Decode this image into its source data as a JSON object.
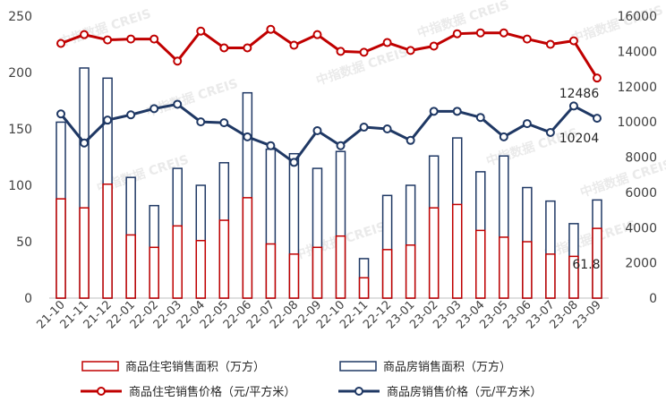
{
  "chart_data": {
    "type": "bar",
    "categories": [
      "21-10",
      "21-11",
      "21-12",
      "22-01",
      "22-02",
      "22-03",
      "22-04",
      "22-05",
      "22-06",
      "22-07",
      "22-08",
      "22-09",
      "22-10",
      "22-11",
      "22-12",
      "23-01",
      "23-02",
      "23-03",
      "23-04",
      "23-05",
      "23-06",
      "23-07",
      "23-08",
      "23-09"
    ],
    "left_axis": {
      "ylim": [
        0,
        250
      ],
      "ticks": [
        0,
        50,
        100,
        150,
        200,
        250
      ]
    },
    "right_axis": {
      "ylim": [
        0,
        16000
      ],
      "ticks": [
        0,
        2000,
        4000,
        6000,
        8000,
        10000,
        12000,
        14000,
        16000
      ]
    },
    "series": [
      {
        "name": "商品住宅销售面积（万方）",
        "kind": "bar",
        "axis": "left",
        "color": "#c00000",
        "fill": "#ffffff",
        "values": [
          88,
          80,
          101,
          56,
          45,
          64,
          51,
          69,
          89,
          48,
          39,
          45,
          55,
          18,
          43,
          47,
          80,
          83,
          60,
          54,
          50,
          39,
          37,
          61.8
        ]
      },
      {
        "name": "商品房销售面积（万方）",
        "kind": "bar",
        "axis": "left",
        "color": "#1f3864",
        "fill": "#ffffff",
        "values": [
          156,
          204,
          195,
          107,
          82,
          115,
          100,
          120,
          182,
          132,
          128,
          115,
          130,
          35,
          91,
          100,
          126,
          142,
          112,
          126,
          98,
          86,
          66,
          87
        ]
      },
      {
        "name": "商品住宅销售价格（元/平方米）",
        "kind": "line",
        "axis": "right",
        "color": "#c00000",
        "values": [
          14450,
          14950,
          14650,
          14700,
          14700,
          13450,
          15150,
          14200,
          14200,
          15250,
          14350,
          14950,
          14000,
          13950,
          14500,
          14050,
          14300,
          15000,
          15050,
          15050,
          14700,
          14400,
          14600,
          12486
        ]
      },
      {
        "name": "商品房销售价格（元/平方米）",
        "kind": "line",
        "axis": "right",
        "color": "#1f3864",
        "values": [
          10450,
          8800,
          10100,
          10400,
          10750,
          11000,
          10000,
          9950,
          9150,
          8650,
          7700,
          9500,
          8650,
          9700,
          9600,
          8950,
          10600,
          10600,
          10250,
          9150,
          9900,
          9400,
          10900,
          10204
        ]
      }
    ],
    "data_labels": [
      {
        "series": 2,
        "index": 23,
        "text": "12486"
      },
      {
        "series": 3,
        "index": 23,
        "text": "10204"
      },
      {
        "series": 0,
        "index": 23,
        "text": "61.8"
      }
    ],
    "watermark": "中指数据 CREIS",
    "legend_position": "bottom",
    "grid": false
  }
}
